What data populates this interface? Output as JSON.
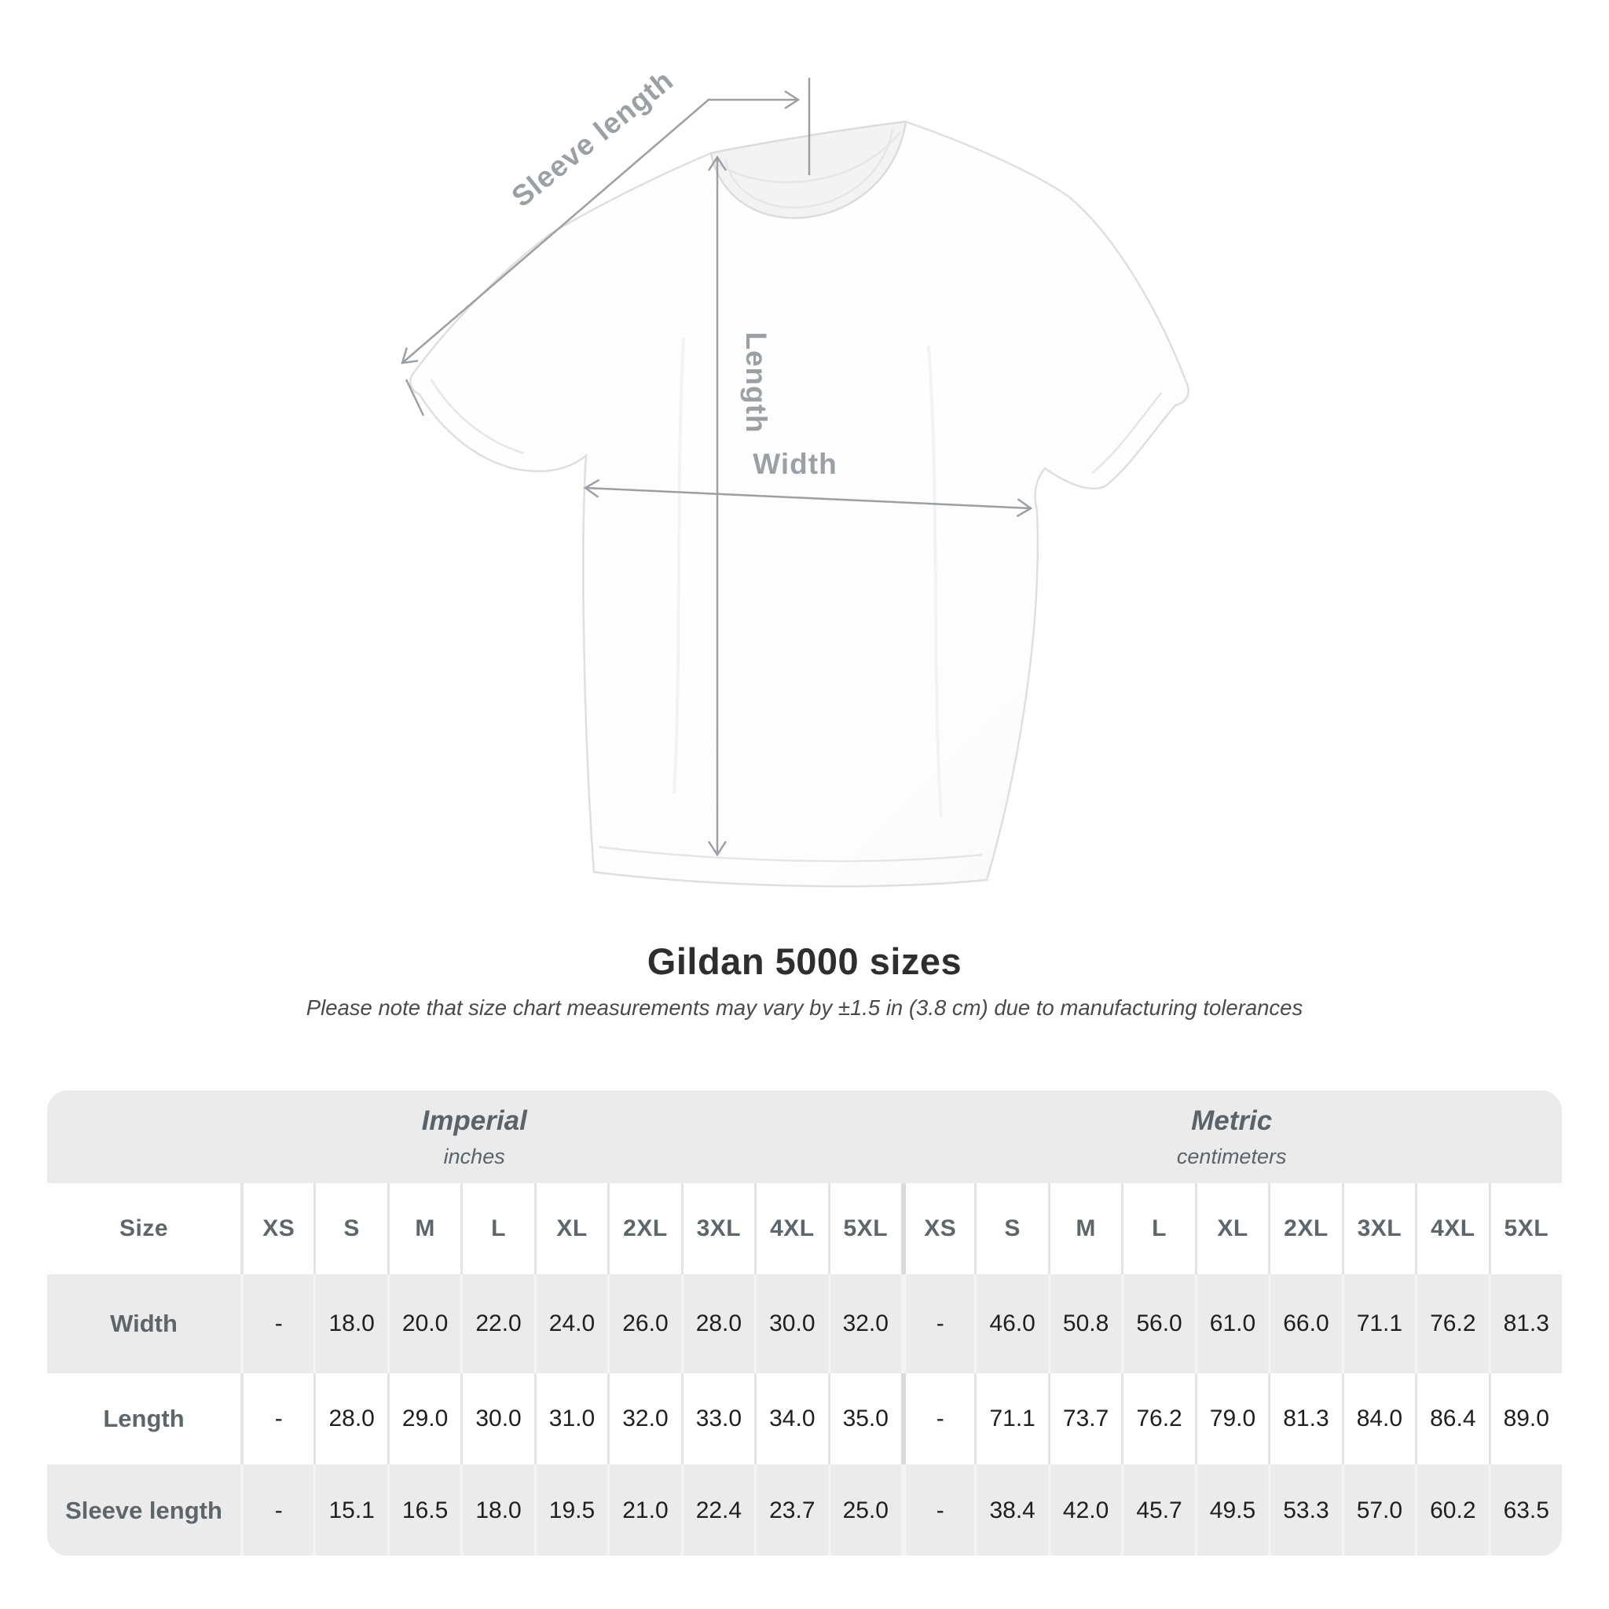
{
  "diagram": {
    "labels": {
      "sleeve_length": "Sleeve length",
      "length": "Length",
      "width": "Width"
    }
  },
  "chart_data": {
    "type": "table",
    "title": "Gildan 5000 sizes",
    "note": "Please note that size chart measurements may vary by ±1.5 in (3.8 cm) due to manufacturing tolerances",
    "unit_groups": [
      {
        "label": "Imperial",
        "sublabel": "inches"
      },
      {
        "label": "Metric",
        "sublabel": "centimeters"
      }
    ],
    "corner_header": "Size",
    "sizes": [
      "XS",
      "S",
      "M",
      "L",
      "XL",
      "2XL",
      "3XL",
      "4XL",
      "5XL"
    ],
    "rows": [
      {
        "label": "Width",
        "imperial": [
          "-",
          "18.0",
          "20.0",
          "22.0",
          "24.0",
          "26.0",
          "28.0",
          "30.0",
          "32.0"
        ],
        "metric": [
          "-",
          "46.0",
          "50.8",
          "56.0",
          "61.0",
          "66.0",
          "71.1",
          "76.2",
          "81.3"
        ]
      },
      {
        "label": "Length",
        "imperial": [
          "-",
          "28.0",
          "29.0",
          "30.0",
          "31.0",
          "32.0",
          "33.0",
          "34.0",
          "35.0"
        ],
        "metric": [
          "-",
          "71.1",
          "73.7",
          "76.2",
          "79.0",
          "81.3",
          "84.0",
          "86.4",
          "89.0"
        ]
      },
      {
        "label": "Sleeve length",
        "imperial": [
          "-",
          "15.1",
          "16.5",
          "18.0",
          "19.5",
          "21.0",
          "22.4",
          "23.7",
          "25.0"
        ],
        "metric": [
          "-",
          "38.4",
          "42.0",
          "45.7",
          "49.5",
          "53.3",
          "57.0",
          "60.2",
          "63.5"
        ]
      }
    ],
    "layout": {
      "stripe_color": "#ebebeb",
      "header_text_color": "#5c666b",
      "value_text_color": "#1f1f1f",
      "annotation_color": "#9aa0a4"
    }
  }
}
